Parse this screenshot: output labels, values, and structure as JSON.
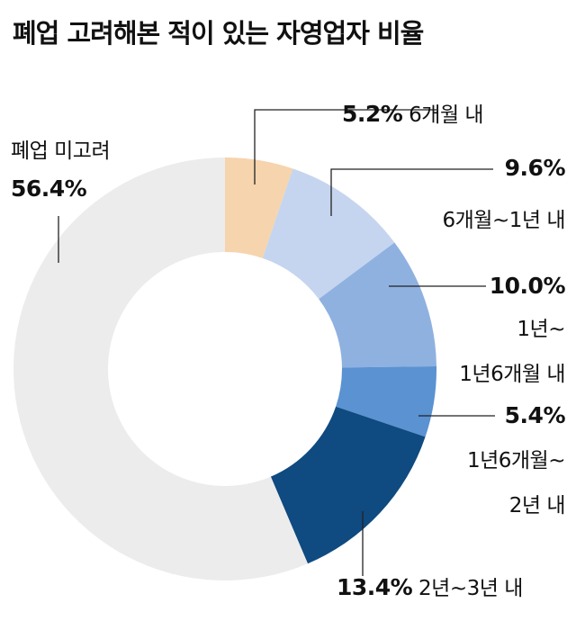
{
  "title": "폐업 고려해본 적이 있는 자영업자 비율",
  "chart_data": {
    "type": "pie",
    "style": "donut",
    "slices": [
      {
        "label": "6개월 내",
        "value": 5.2,
        "pct": "5.2%",
        "color": "#f6d4ad"
      },
      {
        "label": "6개월~1년 내",
        "value": 9.6,
        "pct": "9.6%",
        "color": "#c5d5ef"
      },
      {
        "label": "1년~1년6개월 내",
        "value": 10.0,
        "pct": "10.0%",
        "color": "#8fb1e0"
      },
      {
        "label": "1년6개월~2년 내",
        "value": 5.4,
        "pct": "5.4%",
        "color": "#5a92d2"
      },
      {
        "label": "2년~3년 내",
        "value": 13.4,
        "pct": "13.4%",
        "color": "#0f4a80"
      },
      {
        "label": "폐업 미고려",
        "value": 56.4,
        "pct": "56.4%",
        "color": "#ececec"
      }
    ]
  },
  "labels": {
    "s0": {
      "pct": "5.2%",
      "text": "6개월 내"
    },
    "s1": {
      "pct": "9.6%",
      "text": "6개월~1년 내"
    },
    "s2": {
      "pct": "10.0%",
      "line1": "1년~",
      "line2": "1년6개월 내"
    },
    "s3": {
      "pct": "5.4%",
      "line1": "1년6개월~",
      "line2": "2년 내"
    },
    "s4": {
      "pct": "13.4%",
      "text": "2년~3년 내"
    },
    "s5": {
      "text": "폐업 미고려",
      "pct": "56.4%"
    }
  }
}
